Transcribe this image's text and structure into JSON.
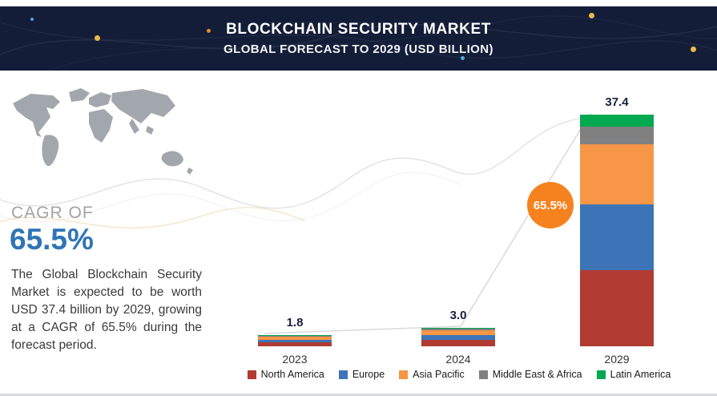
{
  "header": {
    "title": "BLOCKCHAIN SECURITY MARKET",
    "subtitle": "GLOBAL FORECAST TO 2029 (USD BILLION)"
  },
  "cagr": {
    "label": "CAGR OF",
    "value": "65.5%"
  },
  "description": "The Global Blockchain Security Market is expected to be worth USD 37.4 billion by 2029, growing at a CAGR of 65.5% during the forecast period.",
  "badge": {
    "text": "65.5%",
    "color": "#f5821e"
  },
  "colors": {
    "header_bg": "#131d38",
    "accent_blue": "#2e75b6"
  },
  "chart_data": {
    "type": "bar",
    "stacked": true,
    "title": "Blockchain Security Market, Global Forecast (USD Billion)",
    "categories": [
      "2023",
      "2024",
      "2029"
    ],
    "totals": [
      1.8,
      3.0,
      37.4
    ],
    "total_labels": [
      "1.8",
      "3.0",
      "37.4"
    ],
    "series": [
      {
        "name": "North America",
        "color": "#b13b32",
        "values": [
          0.6,
          1.0,
          12.3
        ]
      },
      {
        "name": "Europe",
        "color": "#3d74b8",
        "values": [
          0.5,
          0.85,
          10.6
        ]
      },
      {
        "name": "Asia Pacific",
        "color": "#f79646",
        "values": [
          0.45,
          0.75,
          9.7
        ]
      },
      {
        "name": "Middle East & Africa",
        "color": "#808080",
        "values": [
          0.15,
          0.25,
          2.9
        ]
      },
      {
        "name": "Latin America",
        "color": "#00a84f",
        "values": [
          0.1,
          0.15,
          1.9
        ]
      }
    ],
    "ylim": [
      0,
      38
    ],
    "grid": false,
    "legend_position": "bottom"
  }
}
